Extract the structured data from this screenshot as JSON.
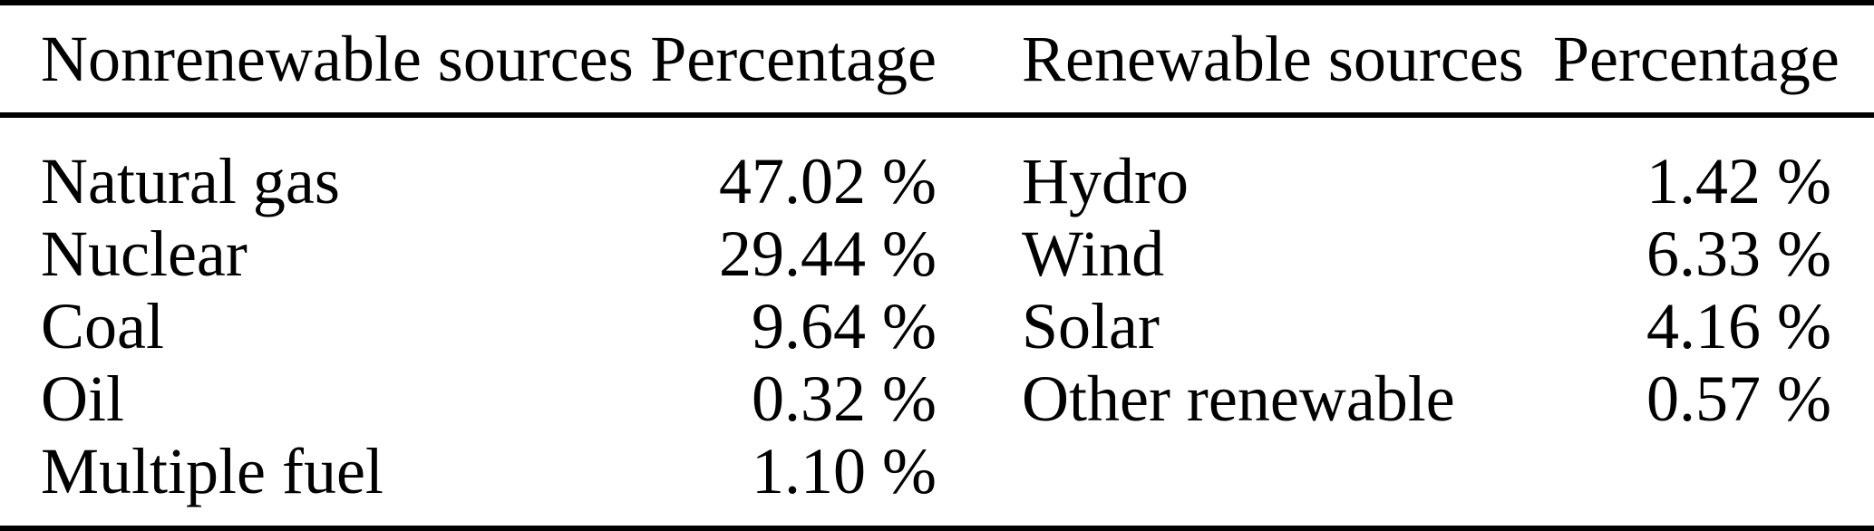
{
  "table": {
    "headers": {
      "nonrenewable": "Nonrenewable sources",
      "nonrenewable_pct": "Percentage",
      "renewable": "Renewable sources",
      "renewable_pct": "Percentage"
    },
    "rows": [
      {
        "nonrenewable": "Natural gas",
        "nonrenewable_pct": "47.02 %",
        "renewable": "Hydro",
        "renewable_pct": "1.42 %"
      },
      {
        "nonrenewable": "Nuclear",
        "nonrenewable_pct": "29.44 %",
        "renewable": "Wind",
        "renewable_pct": "6.33 %"
      },
      {
        "nonrenewable": "Coal",
        "nonrenewable_pct": "9.64 %",
        "renewable": "Solar",
        "renewable_pct": "4.16 %"
      },
      {
        "nonrenewable": "Oil",
        "nonrenewable_pct": "0.32 %",
        "renewable": "Other renewable",
        "renewable_pct": "0.57 %"
      },
      {
        "nonrenewable": "Multiple fuel",
        "nonrenewable_pct": "1.10 %",
        "renewable": "",
        "renewable_pct": ""
      }
    ],
    "text_color": "#000000",
    "rule_color": "#000000",
    "background_color": "#ffffff"
  }
}
